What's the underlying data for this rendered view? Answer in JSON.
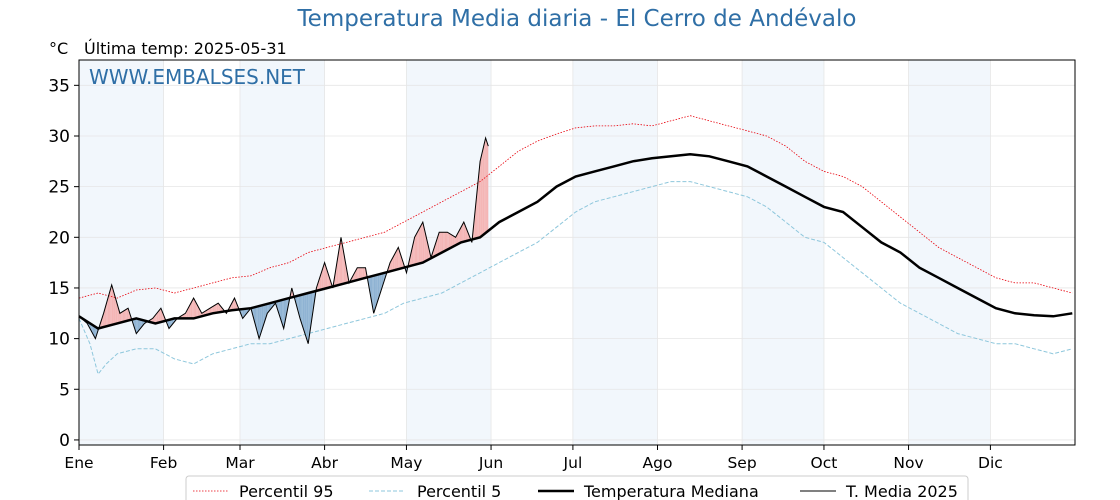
{
  "title": "Temperatura Media diaria - El Cerro de Andévalo",
  "unit_label": "°C",
  "last_temp_label": "Última temp: 2025-05-31",
  "watermark": "WWW.EMBALSES.NET",
  "legend": [
    {
      "label": "Percentil 95",
      "color": "#e8000b",
      "style": "dotted"
    },
    {
      "label": "Percentil 5",
      "color": "#8ec7dc",
      "style": "dashed"
    },
    {
      "label": "Temperatura Mediana",
      "color": "#000000",
      "style": "thick"
    },
    {
      "label": "T. Media 2025",
      "color": "#000000",
      "style": "thin"
    }
  ],
  "chart_data": {
    "type": "line",
    "title": "Temperatura Media diaria - El Cerro de Andévalo",
    "ylabel": "°C",
    "ylim": [
      -0.5,
      37.5
    ],
    "yticks": [
      0,
      5,
      10,
      15,
      20,
      25,
      30,
      35
    ],
    "xlim": [
      1,
      366
    ],
    "x_ticks": [
      {
        "label": "Ene",
        "day": 1
      },
      {
        "label": "Feb",
        "day": 32
      },
      {
        "label": "Mar",
        "day": 60
      },
      {
        "label": "Abr",
        "day": 91
      },
      {
        "label": "May",
        "day": 121
      },
      {
        "label": "Jun",
        "day": 152
      },
      {
        "label": "Jul",
        "day": 182
      },
      {
        "label": "Ago",
        "day": 213
      },
      {
        "label": "Sep",
        "day": 244
      },
      {
        "label": "Oct",
        "day": 274
      },
      {
        "label": "Nov",
        "day": 305
      },
      {
        "label": "Dic",
        "day": 335
      }
    ],
    "shaded_month_bands": [
      [
        1,
        32
      ],
      [
        60,
        91
      ],
      [
        121,
        152
      ],
      [
        182,
        213
      ],
      [
        244,
        274
      ],
      [
        305,
        335
      ]
    ],
    "grid": true,
    "series": [
      {
        "name": "Percentil 95",
        "x": [
          1,
          8,
          15,
          22,
          29,
          36,
          43,
          50,
          57,
          64,
          71,
          78,
          85,
          92,
          99,
          106,
          113,
          120,
          127,
          134,
          141,
          148,
          155,
          162,
          169,
          176,
          183,
          190,
          197,
          204,
          211,
          218,
          225,
          232,
          239,
          246,
          253,
          260,
          267,
          274,
          281,
          288,
          295,
          302,
          309,
          316,
          323,
          330,
          337,
          344,
          351,
          358,
          365
        ],
        "values": [
          14.0,
          14.5,
          14.0,
          14.8,
          15.0,
          14.5,
          15.0,
          15.5,
          16.0,
          16.2,
          17.0,
          17.5,
          18.5,
          19.0,
          19.5,
          20.0,
          20.5,
          21.5,
          22.5,
          23.5,
          24.5,
          25.5,
          27.0,
          28.5,
          29.5,
          30.2,
          30.8,
          31.0,
          31.0,
          31.2,
          31.0,
          31.5,
          32.0,
          31.5,
          31.0,
          30.5,
          30.0,
          29.0,
          27.5,
          26.5,
          26.0,
          25.0,
          23.5,
          22.0,
          20.5,
          19.0,
          18.0,
          17.0,
          16.0,
          15.5,
          15.5,
          15.0,
          14.5
        ]
      },
      {
        "name": "Percentil 5",
        "x": [
          1,
          5,
          8,
          11,
          15,
          22,
          29,
          36,
          43,
          50,
          57,
          64,
          71,
          78,
          85,
          92,
          99,
          106,
          113,
          120,
          127,
          134,
          141,
          148,
          155,
          162,
          169,
          176,
          183,
          190,
          197,
          204,
          211,
          218,
          225,
          232,
          239,
          246,
          253,
          260,
          267,
          274,
          281,
          288,
          295,
          302,
          309,
          316,
          323,
          330,
          337,
          344,
          351,
          358,
          365
        ],
        "values": [
          12.0,
          9.5,
          6.5,
          7.5,
          8.5,
          9.0,
          9.0,
          8.0,
          7.5,
          8.5,
          9.0,
          9.5,
          9.5,
          10.0,
          10.5,
          11.0,
          11.5,
          12.0,
          12.5,
          13.5,
          14.0,
          14.5,
          15.5,
          16.5,
          17.5,
          18.5,
          19.5,
          21.0,
          22.5,
          23.5,
          24.0,
          24.5,
          25.0,
          25.5,
          25.5,
          25.0,
          24.5,
          24.0,
          23.0,
          21.5,
          20.0,
          19.5,
          18.0,
          16.5,
          15.0,
          13.5,
          12.5,
          11.5,
          10.5,
          10.0,
          9.5,
          9.5,
          9.0,
          8.5,
          9.0
        ]
      },
      {
        "name": "Temperatura Mediana",
        "x": [
          1,
          8,
          15,
          22,
          29,
          36,
          43,
          50,
          57,
          64,
          71,
          78,
          85,
          92,
          99,
          106,
          113,
          120,
          127,
          134,
          141,
          148,
          155,
          162,
          169,
          176,
          183,
          190,
          197,
          204,
          211,
          218,
          225,
          232,
          239,
          246,
          253,
          260,
          267,
          274,
          281,
          288,
          295,
          302,
          309,
          316,
          323,
          330,
          337,
          344,
          351,
          358,
          365
        ],
        "values": [
          12.2,
          11.0,
          11.5,
          12.0,
          11.5,
          12.0,
          12.0,
          12.5,
          12.8,
          13.0,
          13.5,
          14.0,
          14.5,
          15.0,
          15.5,
          16.0,
          16.5,
          17.0,
          17.5,
          18.5,
          19.5,
          20.0,
          21.5,
          22.5,
          23.5,
          25.0,
          26.0,
          26.5,
          27.0,
          27.5,
          27.8,
          28.0,
          28.2,
          28.0,
          27.5,
          27.0,
          26.0,
          25.0,
          24.0,
          23.0,
          22.5,
          21.0,
          19.5,
          18.5,
          17.0,
          16.0,
          15.0,
          14.0,
          13.0,
          12.5,
          12.3,
          12.2,
          12.5
        ]
      },
      {
        "name": "T. Media 2025",
        "x": [
          1,
          4,
          7,
          10,
          13,
          16,
          19,
          22,
          25,
          28,
          31,
          34,
          37,
          40,
          43,
          46,
          49,
          52,
          55,
          58,
          61,
          64,
          67,
          70,
          73,
          76,
          79,
          82,
          85,
          88,
          91,
          94,
          97,
          100,
          103,
          106,
          109,
          112,
          115,
          118,
          121,
          124,
          127,
          130,
          133,
          136,
          139,
          142,
          145,
          148,
          150,
          151
        ],
        "values": [
          12.2,
          11.5,
          10.0,
          12.5,
          15.3,
          12.5,
          13.0,
          10.5,
          11.5,
          12.0,
          13.0,
          11.0,
          12.0,
          12.5,
          14.0,
          12.5,
          13.0,
          13.5,
          12.5,
          14.0,
          12.0,
          13.0,
          10.0,
          12.5,
          13.5,
          11.0,
          15.0,
          12.0,
          9.5,
          15.0,
          17.5,
          15.0,
          20.0,
          15.5,
          17.0,
          17.0,
          12.5,
          15.0,
          17.5,
          19.0,
          16.5,
          20.0,
          21.5,
          18.0,
          20.5,
          20.5,
          20.0,
          21.5,
          19.5,
          27.5,
          29.8,
          29.0
        ]
      }
    ]
  }
}
